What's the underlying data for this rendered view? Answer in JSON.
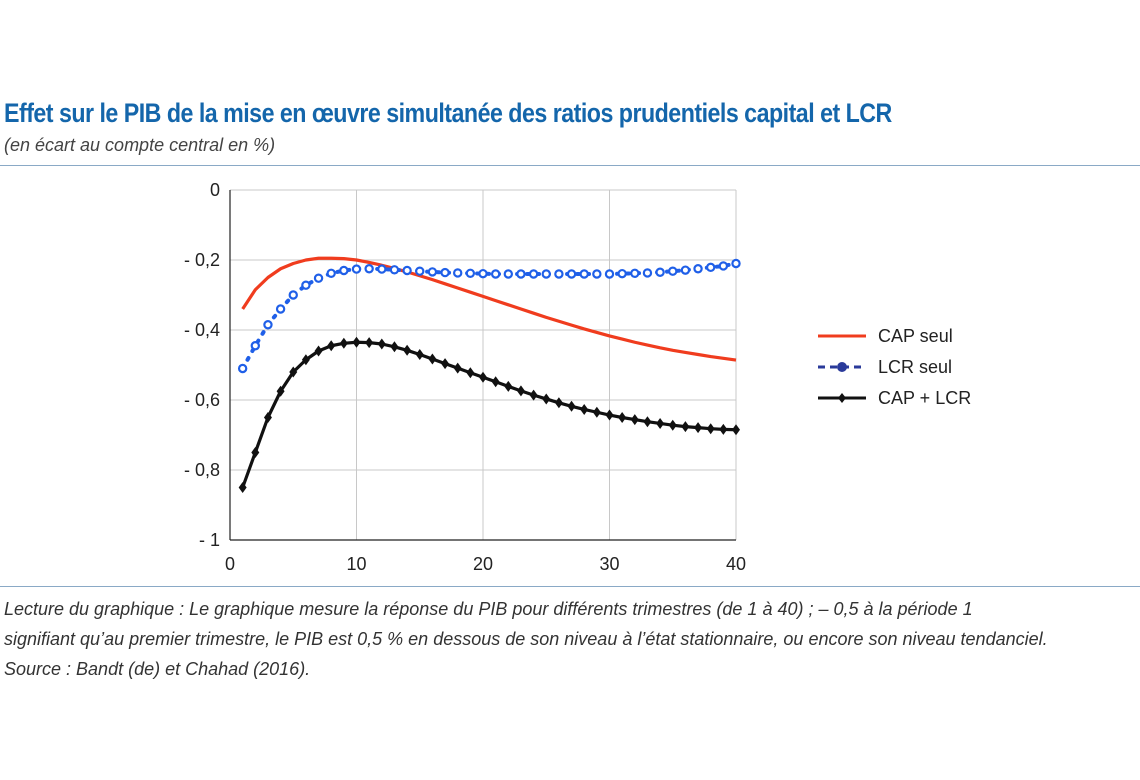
{
  "title": "Effet sur le PIB de la mise en œuvre simultanée des ratios prudentiels capital et LCR",
  "subtitle": "(en écart au compte central en %)",
  "caption": {
    "line1": "Lecture du graphique : Le graphique mesure la réponse du PIB pour différents trimestres (de 1 à 40) ; – 0,5 à la période 1",
    "line2": "signifiant qu’au premier trimestre, le PIB est 0,5 % en dessous de son niveau à l’état stationnaire, ou encore son niveau tendanciel.",
    "line3": "Source : Bandt (de) et Chahad (2016)."
  },
  "chart_data": {
    "type": "line",
    "title": "Effet sur le PIB de la mise en œuvre simultanée des ratios prudentiels capital et LCR",
    "xlabel": "",
    "ylabel": "",
    "xlim": [
      0,
      40
    ],
    "ylim": [
      -1,
      0
    ],
    "xticks": [
      0,
      10,
      20,
      30,
      40
    ],
    "xtick_labels": [
      "0",
      "10",
      "20",
      "30",
      "40"
    ],
    "yticks": [
      0,
      -0.2,
      -0.4,
      -0.6,
      -0.8,
      -1
    ],
    "ytick_labels": [
      "0",
      "- 0,2",
      "- 0,4",
      "- 0,6",
      "- 0,8",
      "- 1"
    ],
    "grid": true,
    "legend_position": "right",
    "x": [
      1,
      2,
      3,
      4,
      5,
      6,
      7,
      8,
      9,
      10,
      11,
      12,
      13,
      14,
      15,
      16,
      17,
      18,
      19,
      20,
      21,
      22,
      23,
      24,
      25,
      26,
      27,
      28,
      29,
      30,
      31,
      32,
      33,
      34,
      35,
      36,
      37,
      38,
      39,
      40
    ],
    "series": [
      {
        "name": "CAP seul",
        "color": "#f03c1e",
        "style": "solid",
        "marker": "none",
        "values": [
          -0.34,
          -0.285,
          -0.25,
          -0.225,
          -0.21,
          -0.2,
          -0.195,
          -0.195,
          -0.196,
          -0.2,
          -0.207,
          -0.215,
          -0.224,
          -0.234,
          -0.245,
          -0.256,
          -0.268,
          -0.28,
          -0.292,
          -0.304,
          -0.316,
          -0.328,
          -0.34,
          -0.352,
          -0.364,
          -0.375,
          -0.386,
          -0.397,
          -0.407,
          -0.417,
          -0.426,
          -0.435,
          -0.443,
          -0.451,
          -0.458,
          -0.464,
          -0.47,
          -0.476,
          -0.481,
          -0.486
        ]
      },
      {
        "name": "LCR seul",
        "color": "#1f5fe8",
        "style": "dotted",
        "marker": "circle",
        "values": [
          -0.51,
          -0.445,
          -0.385,
          -0.34,
          -0.3,
          -0.272,
          -0.252,
          -0.238,
          -0.23,
          -0.226,
          -0.225,
          -0.226,
          -0.228,
          -0.23,
          -0.232,
          -0.234,
          -0.236,
          -0.237,
          -0.238,
          -0.239,
          -0.24,
          -0.24,
          -0.24,
          -0.24,
          -0.24,
          -0.24,
          -0.24,
          -0.24,
          -0.24,
          -0.24,
          -0.239,
          -0.238,
          -0.237,
          -0.235,
          -0.232,
          -0.229,
          -0.225,
          -0.221,
          -0.217,
          -0.21
        ]
      },
      {
        "name": "CAP + LCR",
        "color": "#111111",
        "style": "solid",
        "marker": "diamond",
        "values": [
          -0.85,
          -0.75,
          -0.65,
          -0.575,
          -0.52,
          -0.485,
          -0.46,
          -0.445,
          -0.438,
          -0.435,
          -0.436,
          -0.44,
          -0.448,
          -0.458,
          -0.47,
          -0.483,
          -0.496,
          -0.509,
          -0.522,
          -0.535,
          -0.548,
          -0.561,
          -0.574,
          -0.586,
          -0.597,
          -0.608,
          -0.618,
          -0.627,
          -0.635,
          -0.643,
          -0.65,
          -0.656,
          -0.662,
          -0.667,
          -0.672,
          -0.676,
          -0.679,
          -0.682,
          -0.684,
          -0.685
        ]
      }
    ]
  }
}
